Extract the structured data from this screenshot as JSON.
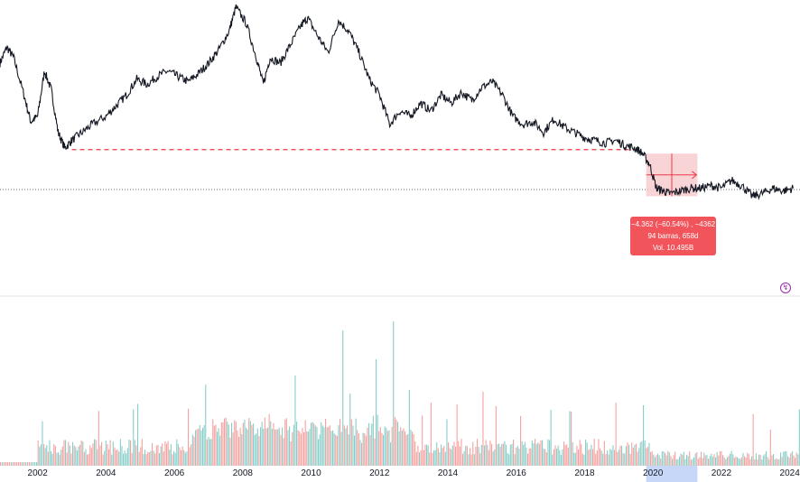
{
  "chart_data": {
    "type": "line",
    "title": "",
    "xlabel": "",
    "ylabel": "",
    "x_ticks": [
      "2002",
      "2004",
      "2006",
      "2008",
      "2010",
      "2012",
      "2014",
      "2016",
      "2018",
      "2020",
      "2022",
      "2024"
    ],
    "highlighted_tick": "2020",
    "xlim": [
      2000.9,
      2024.3
    ],
    "ylim": [
      0,
      100
    ],
    "series": [
      {
        "values": [
          [
            2000.9,
            78
          ],
          [
            2001.1,
            84
          ],
          [
            2001.3,
            80
          ],
          [
            2001.6,
            66
          ],
          [
            2001.8,
            56
          ],
          [
            2002.0,
            58
          ],
          [
            2002.2,
            75
          ],
          [
            2002.4,
            68
          ],
          [
            2002.6,
            52
          ],
          [
            2002.8,
            46
          ],
          [
            2003.0,
            49
          ],
          [
            2003.3,
            52
          ],
          [
            2003.6,
            55
          ],
          [
            2004.0,
            58
          ],
          [
            2004.3,
            62
          ],
          [
            2004.6,
            66
          ],
          [
            2004.9,
            72
          ],
          [
            2005.2,
            70
          ],
          [
            2005.5,
            73
          ],
          [
            2005.8,
            75
          ],
          [
            2006.1,
            73
          ],
          [
            2006.4,
            71
          ],
          [
            2006.7,
            74
          ],
          [
            2007.0,
            78
          ],
          [
            2007.3,
            83
          ],
          [
            2007.6,
            90
          ],
          [
            2007.8,
            99
          ],
          [
            2008.1,
            93
          ],
          [
            2008.4,
            80
          ],
          [
            2008.6,
            70
          ],
          [
            2008.8,
            80
          ],
          [
            2009.1,
            78
          ],
          [
            2009.4,
            85
          ],
          [
            2009.7,
            92
          ],
          [
            2009.9,
            95
          ],
          [
            2010.2,
            88
          ],
          [
            2010.5,
            82
          ],
          [
            2010.8,
            94
          ],
          [
            2011.1,
            90
          ],
          [
            2011.4,
            82
          ],
          [
            2011.7,
            72
          ],
          [
            2012.0,
            66
          ],
          [
            2012.3,
            55
          ],
          [
            2012.6,
            60
          ],
          [
            2012.9,
            58
          ],
          [
            2013.2,
            63
          ],
          [
            2013.5,
            60
          ],
          [
            2013.8,
            66
          ],
          [
            2014.1,
            63
          ],
          [
            2014.4,
            67
          ],
          [
            2014.7,
            64
          ],
          [
            2015.0,
            69
          ],
          [
            2015.3,
            71
          ],
          [
            2015.6,
            66
          ],
          [
            2015.9,
            58
          ],
          [
            2016.2,
            55
          ],
          [
            2016.5,
            56
          ],
          [
            2016.8,
            52
          ],
          [
            2017.1,
            57
          ],
          [
            2017.4,
            54
          ],
          [
            2017.7,
            52
          ],
          [
            2018.0,
            50
          ],
          [
            2018.3,
            49
          ],
          [
            2018.6,
            48
          ],
          [
            2018.9,
            49
          ],
          [
            2019.2,
            47
          ],
          [
            2019.5,
            46
          ],
          [
            2019.7,
            44
          ],
          [
            2019.9,
            40
          ],
          [
            2020.1,
            31
          ],
          [
            2020.3,
            30
          ],
          [
            2020.5,
            29
          ],
          [
            2020.8,
            30
          ],
          [
            2021.1,
            31
          ],
          [
            2021.4,
            31
          ],
          [
            2021.7,
            32
          ],
          [
            2022.0,
            31
          ],
          [
            2022.3,
            34
          ],
          [
            2022.6,
            32
          ],
          [
            2022.9,
            28
          ],
          [
            2023.2,
            29
          ],
          [
            2023.5,
            31
          ],
          [
            2023.8,
            30
          ],
          [
            2024.1,
            31
          ]
        ]
      }
    ],
    "baseline_level": 30.5,
    "support_level": 45.5,
    "measurement": {
      "from_x": 2019.8,
      "to_x": 2021.3,
      "line1": "−4.362 (−60.54%) , −4362",
      "line2": "94 barras, 658d",
      "line3": "Vol. 10.495B"
    },
    "volume_series": {
      "note_units": "relative",
      "start": 2002.0,
      "end": 2024.3
    },
    "colors": {
      "up": "#26a69a",
      "down": "#ef5350",
      "line": "#131722",
      "dashed_support": "#f23645",
      "measure_fill": "#f8c9cc",
      "measure_box": "#f2545b",
      "highlight_tick_bg": "#c7d7f8",
      "grid_divider": "#e0e3eb"
    },
    "flash_icon": "lightning-icon"
  }
}
